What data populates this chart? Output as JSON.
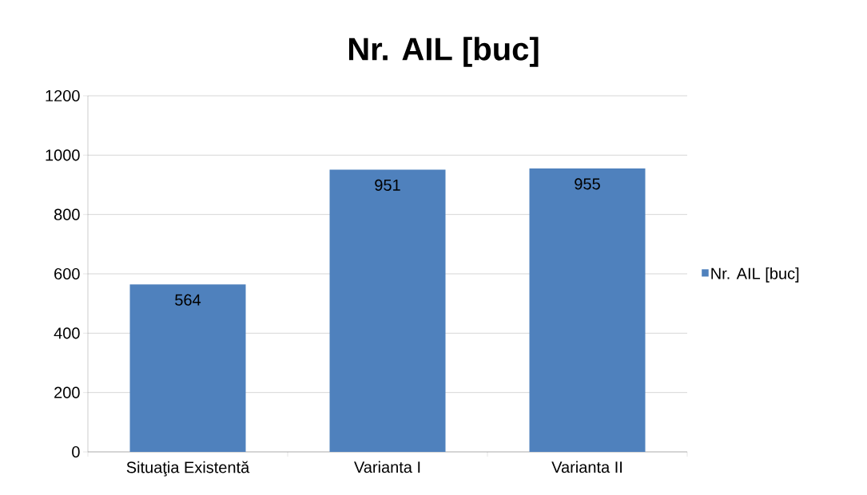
{
  "chart_data": {
    "type": "bar",
    "title": "Nr. AIL [buc]",
    "categories": [
      "Situaţia Existentă",
      "Varianta I",
      "Varianta II"
    ],
    "series": [
      {
        "name": "Nr. AIL [buc]",
        "color": "#4f81bd",
        "values": [
          564,
          951,
          955
        ]
      }
    ],
    "ylim": [
      0,
      1200
    ],
    "yticks": [
      0,
      200,
      400,
      600,
      800,
      1000,
      1200
    ],
    "grid": "y",
    "legend": "right",
    "data_labels": true
  }
}
